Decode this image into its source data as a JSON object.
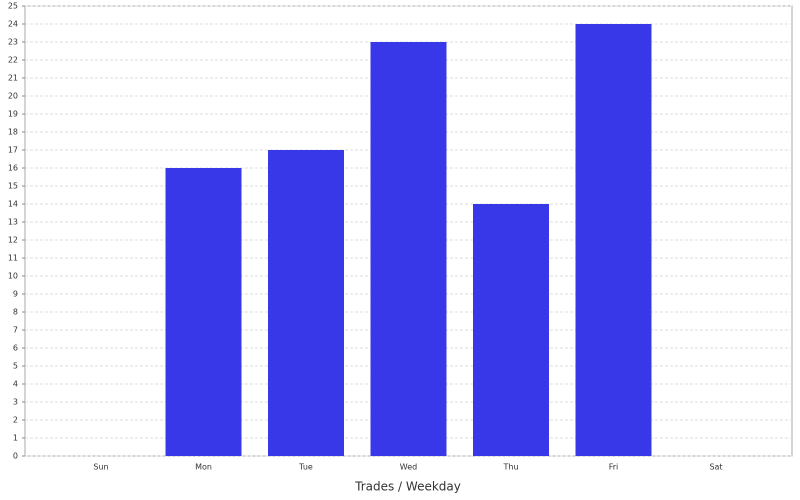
{
  "chart_data": {
    "type": "bar",
    "xlabel": "Trades / Weekday",
    "categories": [
      "Sun",
      "Mon",
      "Tue",
      "Wed",
      "Thu",
      "Fri",
      "Sat"
    ],
    "values": [
      0,
      16,
      17,
      23,
      14,
      24,
      0
    ],
    "color": "#3838e8",
    "ylim": [
      0,
      25
    ],
    "yticks": [
      0,
      1,
      2,
      3,
      4,
      5,
      6,
      7,
      8,
      9,
      10,
      11,
      12,
      13,
      14,
      15,
      16,
      17,
      18,
      19,
      20,
      21,
      22,
      23,
      24,
      25
    ],
    "grid": true
  }
}
